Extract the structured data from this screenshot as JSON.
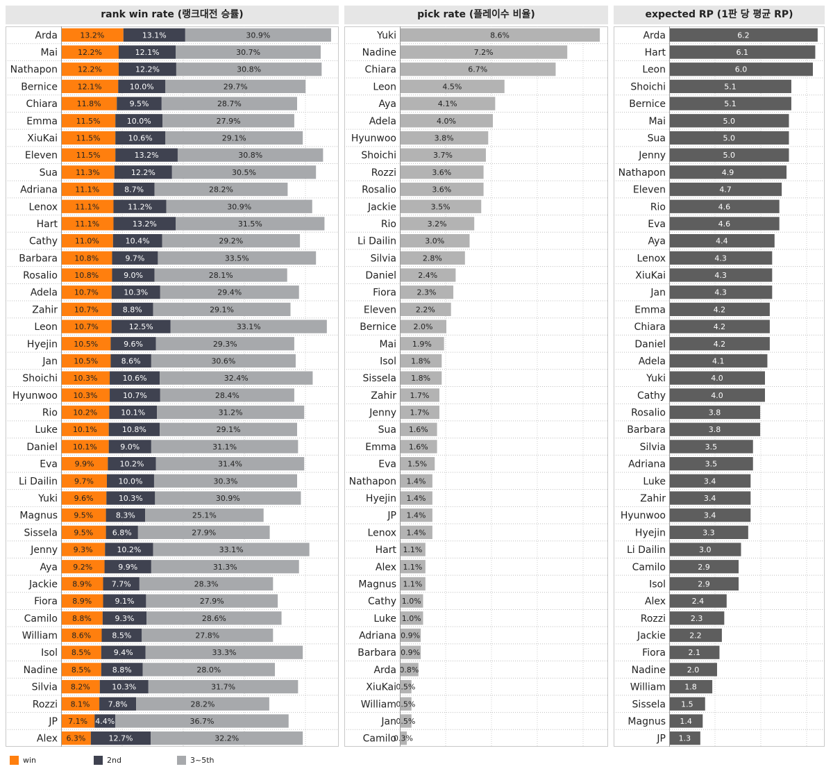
{
  "colors": {
    "win": "#ff7f0e",
    "second": "#3f4250",
    "third": "#a7a9ac",
    "pick": "#b3b3b3",
    "rp": "#5e5e5e",
    "title_bg": "#e6e6e6"
  },
  "legend": [
    {
      "name": "win",
      "color": "#ff7f0e"
    },
    {
      "name": "2nd",
      "color": "#3f4250"
    },
    {
      "name": "3~5th",
      "color": "#a7a9ac"
    }
  ],
  "chart_data": [
    {
      "type": "bar",
      "stacked": true,
      "orientation": "horizontal",
      "title": "rank win rate (랭크대전 승률)",
      "unit": "%",
      "categories": [
        "Arda",
        "Mai",
        "Nathapon",
        "Bernice",
        "Chiara",
        "Emma",
        "XiuKai",
        "Eleven",
        "Sua",
        "Adriana",
        "Lenox",
        "Hart",
        "Cathy",
        "Barbara",
        "Rosalio",
        "Adela",
        "Zahir",
        "Leon",
        "Hyejin",
        "Jan",
        "Shoichi",
        "Hyunwoo",
        "Rio",
        "Luke",
        "Daniel",
        "Eva",
        "Li Dailin",
        "Yuki",
        "Magnus",
        "Sissela",
        "Jenny",
        "Aya",
        "Jackie",
        "Fiora",
        "Camilo",
        "William",
        "Isol",
        "Nadine",
        "Silvia",
        "Rozzi",
        "JP",
        "Alex"
      ],
      "series": [
        {
          "name": "win",
          "values": [
            13.2,
            12.2,
            12.2,
            12.1,
            11.8,
            11.5,
            11.5,
            11.5,
            11.3,
            11.1,
            11.1,
            11.1,
            11.0,
            10.8,
            10.8,
            10.7,
            10.7,
            10.7,
            10.5,
            10.5,
            10.3,
            10.3,
            10.2,
            10.1,
            10.1,
            9.9,
            9.7,
            9.6,
            9.5,
            9.5,
            9.3,
            9.2,
            8.9,
            8.9,
            8.8,
            8.6,
            8.5,
            8.5,
            8.2,
            8.1,
            7.1,
            6.3
          ]
        },
        {
          "name": "2nd",
          "values": [
            13.1,
            12.1,
            12.2,
            10.0,
            9.5,
            10.0,
            10.6,
            13.2,
            12.2,
            8.7,
            11.2,
            13.2,
            10.4,
            9.7,
            9.0,
            10.3,
            8.8,
            12.5,
            9.6,
            8.6,
            10.6,
            10.7,
            10.1,
            10.8,
            9.0,
            10.2,
            10.0,
            10.3,
            8.3,
            6.8,
            10.2,
            9.9,
            7.7,
            9.1,
            9.3,
            8.5,
            9.4,
            8.8,
            10.3,
            7.8,
            4.4,
            12.7
          ]
        },
        {
          "name": "3~5th",
          "values": [
            30.9,
            30.7,
            30.8,
            29.7,
            28.7,
            27.9,
            29.1,
            30.8,
            30.5,
            28.2,
            30.9,
            31.5,
            29.2,
            33.5,
            28.1,
            29.4,
            29.1,
            33.1,
            29.3,
            30.6,
            32.4,
            28.4,
            31.2,
            29.1,
            31.1,
            31.4,
            30.3,
            30.9,
            25.1,
            27.9,
            33.1,
            31.3,
            28.3,
            27.9,
            28.6,
            27.8,
            33.3,
            28.0,
            31.7,
            28.2,
            36.7,
            32.2
          ]
        }
      ]
    },
    {
      "type": "bar",
      "orientation": "horizontal",
      "title": "pick rate (플레이수 비율)",
      "unit": "%",
      "categories": [
        "Yuki",
        "Nadine",
        "Chiara",
        "Leon",
        "Aya",
        "Adela",
        "Hyunwoo",
        "Shoichi",
        "Rozzi",
        "Rosalio",
        "Jackie",
        "Rio",
        "Li Dailin",
        "Silvia",
        "Daniel",
        "Fiora",
        "Eleven",
        "Bernice",
        "Mai",
        "Isol",
        "Sissela",
        "Zahir",
        "Jenny",
        "Sua",
        "Emma",
        "Eva",
        "Nathapon",
        "Hyejin",
        "JP",
        "Lenox",
        "Hart",
        "Alex",
        "Magnus",
        "Cathy",
        "Luke",
        "Adriana",
        "Barbara",
        "Arda",
        "XiuKai",
        "William",
        "Jan",
        "Camilo"
      ],
      "values": [
        8.6,
        7.2,
        6.7,
        4.5,
        4.1,
        4.0,
        3.8,
        3.7,
        3.6,
        3.6,
        3.5,
        3.2,
        3.0,
        2.8,
        2.4,
        2.3,
        2.2,
        2.0,
        1.9,
        1.8,
        1.8,
        1.7,
        1.7,
        1.6,
        1.6,
        1.5,
        1.4,
        1.4,
        1.4,
        1.4,
        1.1,
        1.1,
        1.1,
        1.0,
        1.0,
        0.9,
        0.9,
        0.8,
        0.5,
        0.5,
        0.5,
        0.3
      ]
    },
    {
      "type": "bar",
      "orientation": "horizontal",
      "title": "expected RP (1판 당 평균 RP)",
      "categories": [
        "Arda",
        "Hart",
        "Leon",
        "Shoichi",
        "Bernice",
        "Mai",
        "Sua",
        "Jenny",
        "Nathapon",
        "Eleven",
        "Rio",
        "Eva",
        "Aya",
        "Lenox",
        "XiuKai",
        "Jan",
        "Emma",
        "Chiara",
        "Daniel",
        "Adela",
        "Yuki",
        "Cathy",
        "Rosalio",
        "Barbara",
        "Silvia",
        "Adriana",
        "Luke",
        "Zahir",
        "Hyunwoo",
        "Hyejin",
        "Li Dailin",
        "Camilo",
        "Isol",
        "Alex",
        "Rozzi",
        "Jackie",
        "Fiora",
        "Nadine",
        "William",
        "Sissela",
        "Magnus",
        "JP"
      ],
      "values": [
        6.2,
        6.1,
        6.0,
        5.1,
        5.1,
        5.0,
        5.0,
        5.0,
        4.9,
        4.7,
        4.6,
        4.6,
        4.4,
        4.3,
        4.3,
        4.3,
        4.2,
        4.2,
        4.2,
        4.1,
        4.0,
        4.0,
        3.8,
        3.8,
        3.5,
        3.5,
        3.4,
        3.4,
        3.4,
        3.3,
        3.0,
        2.9,
        2.9,
        2.4,
        2.3,
        2.2,
        2.1,
        2.0,
        1.8,
        1.5,
        1.4,
        1.3
      ]
    }
  ]
}
